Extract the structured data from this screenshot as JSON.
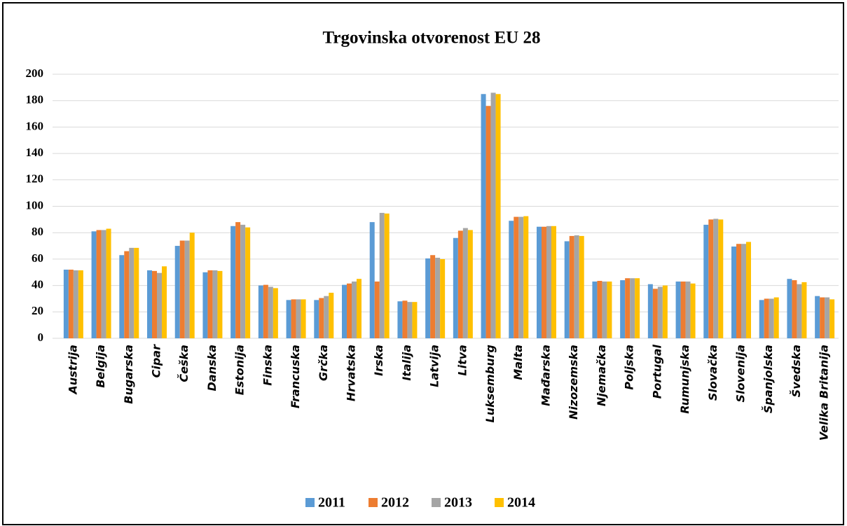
{
  "chart_data": {
    "type": "bar",
    "title": "Trgovinska otvorenost EU 28",
    "categories": [
      "Austrija",
      "Belgija",
      "Bugarska",
      "Cipar",
      "Češka",
      "Danska",
      "Estonija",
      "Finska",
      "Francuska",
      "Grčka",
      "Hrvatska",
      "Irska",
      "Italija",
      "Latvija",
      "Litva",
      "Luksemburg",
      "Malta",
      "Mađarska",
      "Nizozemska",
      "Njemačka",
      "Poljska",
      "Portugal",
      "Rumunjska",
      "Slovačka",
      "Slovenija",
      "Španjolska",
      "Švedska",
      "Velika Britanija"
    ],
    "series": [
      {
        "name": "2011",
        "color": "#5b9bd5",
        "values": [
          52,
          81,
          63,
          51.5,
          70,
          50,
          85,
          40,
          29,
          29,
          40.5,
          88,
          28,
          60.5,
          76,
          185,
          89,
          84.5,
          73.5,
          43,
          44,
          41,
          43,
          86,
          69.5,
          29,
          45,
          32
        ]
      },
      {
        "name": "2012",
        "color": "#ed7d31",
        "values": [
          52,
          82,
          66,
          51,
          74,
          51.5,
          88,
          40.5,
          29.5,
          30.5,
          41.5,
          43,
          28.5,
          63,
          81.5,
          176,
          92,
          84.5,
          77.5,
          43.5,
          45.5,
          37.5,
          43,
          90,
          71.5,
          30,
          44,
          31
        ]
      },
      {
        "name": "2013",
        "color": "#a5a5a5",
        "values": [
          51.5,
          82,
          68.5,
          49.5,
          74,
          51.5,
          86,
          39,
          29.5,
          32,
          43,
          95,
          27.5,
          61,
          83.5,
          186,
          92,
          85,
          78,
          43,
          45.5,
          39,
          43,
          90.5,
          71.5,
          30,
          41,
          31
        ]
      },
      {
        "name": "2014",
        "color": "#ffc000",
        "values": [
          51.5,
          83,
          68.5,
          54.5,
          80,
          51,
          84,
          38,
          29.5,
          34.5,
          45,
          94.5,
          27.5,
          60,
          82,
          185,
          92.5,
          85,
          77.5,
          43,
          45.5,
          40,
          41.5,
          90,
          73,
          31,
          42.5,
          29.5
        ]
      }
    ],
    "ylim": [
      0,
      200
    ],
    "yticks": [
      0,
      20,
      40,
      60,
      80,
      100,
      120,
      140,
      160,
      180,
      200
    ],
    "grid": true,
    "legend": "bottom"
  }
}
